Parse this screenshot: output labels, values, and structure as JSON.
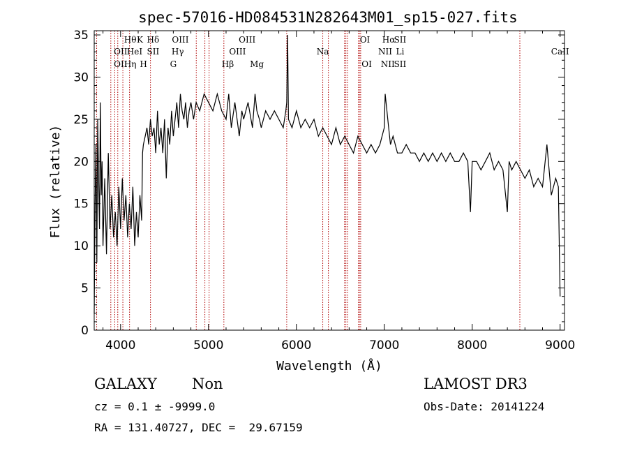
{
  "chart_data": {
    "type": "line",
    "title": "spec-57016-HD084531N282643M01_sp15-027.fits",
    "xlabel": "Wavelength (Å)",
    "ylabel": "Flux (relative)",
    "xlim": [
      3700,
      9050
    ],
    "ylim": [
      0,
      35.5
    ],
    "xticks": [
      4000,
      5000,
      6000,
      7000,
      8000,
      9000
    ],
    "yticks": [
      0,
      5,
      10,
      15,
      20,
      25,
      30,
      35
    ],
    "grid": false,
    "series": [
      {
        "name": "spectrum",
        "color": "#000000",
        "x": [
          3700,
          3710,
          3720,
          3730,
          3740,
          3750,
          3760,
          3770,
          3780,
          3790,
          3800,
          3820,
          3840,
          3860,
          3880,
          3900,
          3920,
          3940,
          3960,
          3980,
          4000,
          4020,
          4040,
          4060,
          4080,
          4100,
          4120,
          4140,
          4160,
          4180,
          4200,
          4220,
          4240,
          4250,
          4260,
          4280,
          4300,
          4320,
          4340,
          4360,
          4380,
          4400,
          4420,
          4440,
          4460,
          4480,
          4500,
          4520,
          4540,
          4560,
          4580,
          4600,
          4620,
          4640,
          4660,
          4680,
          4700,
          4720,
          4740,
          4760,
          4780,
          4800,
          4830,
          4860,
          4900,
          4950,
          5000,
          5050,
          5100,
          5150,
          5200,
          5230,
          5260,
          5300,
          5350,
          5380,
          5400,
          5450,
          5500,
          5530,
          5550,
          5580,
          5600,
          5650,
          5700,
          5750,
          5800,
          5850,
          5880,
          5890,
          5900,
          5910,
          5950,
          6000,
          6050,
          6100,
          6150,
          6200,
          6250,
          6300,
          6350,
          6400,
          6450,
          6500,
          6550,
          6600,
          6650,
          6700,
          6750,
          6800,
          6850,
          6900,
          6950,
          7000,
          7010,
          7030,
          7050,
          7070,
          7100,
          7150,
          7200,
          7250,
          7300,
          7350,
          7400,
          7450,
          7500,
          7550,
          7600,
          7650,
          7700,
          7750,
          7800,
          7850,
          7900,
          7950,
          7980,
          8000,
          8050,
          8100,
          8150,
          8200,
          8250,
          8300,
          8350,
          8400,
          8420,
          8450,
          8500,
          8550,
          8600,
          8650,
          8700,
          8750,
          8800,
          8850,
          8900,
          8950,
          8980,
          9000
        ],
        "y": [
          2,
          15,
          22,
          8,
          25,
          18,
          12,
          27,
          16,
          20,
          10,
          18,
          9,
          21,
          12,
          16,
          11,
          14,
          10,
          17,
          12,
          18,
          13,
          16,
          11,
          15,
          12,
          17,
          10,
          14,
          11,
          16,
          13,
          21,
          22,
          23,
          24,
          22,
          25,
          23,
          24,
          21,
          26,
          22,
          24,
          21,
          25,
          18,
          24,
          22,
          26,
          23,
          25,
          27,
          24,
          28,
          26,
          25,
          27,
          24,
          26,
          27,
          25,
          27,
          26,
          28,
          27,
          26,
          28,
          26,
          25,
          28,
          24,
          27,
          23,
          26,
          25,
          27,
          24,
          28,
          26,
          25,
          24,
          26,
          25,
          26,
          25,
          24,
          26,
          27,
          35,
          25,
          24,
          26,
          24,
          25,
          24,
          25,
          23,
          24,
          23,
          22,
          24,
          22,
          23,
          22,
          21,
          23,
          22,
          21,
          22,
          21,
          22,
          24,
          28,
          26,
          24,
          22,
          23,
          21,
          21,
          22,
          21,
          21,
          20,
          21,
          20,
          21,
          20,
          21,
          20,
          21,
          20,
          20,
          21,
          20,
          14,
          20,
          20,
          19,
          20,
          21,
          19,
          20,
          19,
          14,
          20,
          19,
          20,
          19,
          18,
          19,
          17,
          18,
          17,
          22,
          16,
          18,
          17,
          4
        ]
      }
    ],
    "lines": {
      "color": "#b00000",
      "wavelengths": [
        3728,
        3889,
        3934,
        3968,
        4026,
        4102,
        4340,
        4861,
        4959,
        5007,
        5175,
        5890,
        6300,
        6364,
        6548,
        6563,
        6583,
        6707,
        6717,
        6731,
        8542
      ],
      "labels": [
        {
          "text": "Hθ",
          "x": 4110,
          "row": 1
        },
        {
          "text": "K",
          "x": 4220,
          "row": 1
        },
        {
          "text": "Hδ",
          "x": 4370,
          "row": 1
        },
        {
          "text": "OIII",
          "x": 4680,
          "row": 1
        },
        {
          "text": "OIII",
          "x": 5440,
          "row": 1
        },
        {
          "text": "OI",
          "x": 6780,
          "row": 1
        },
        {
          "text": "Hα",
          "x": 7050,
          "row": 1
        },
        {
          "text": "SII",
          "x": 7180,
          "row": 1
        },
        {
          "text": "OII",
          "x": 4000,
          "row": 2
        },
        {
          "text": "HeI",
          "x": 4160,
          "row": 2
        },
        {
          "text": "SII",
          "x": 4370,
          "row": 2
        },
        {
          "text": "Hγ",
          "x": 4650,
          "row": 2
        },
        {
          "text": "OIII",
          "x": 5330,
          "row": 2
        },
        {
          "text": "Na",
          "x": 6300,
          "row": 2
        },
        {
          "text": "NII",
          "x": 7010,
          "row": 2
        },
        {
          "text": "Li",
          "x": 7180,
          "row": 2
        },
        {
          "text": "CaII",
          "x": 9000,
          "row": 2
        },
        {
          "text": "OII",
          "x": 4000,
          "row": 3
        },
        {
          "text": "Hη",
          "x": 4110,
          "row": 3
        },
        {
          "text": "H",
          "x": 4260,
          "row": 3
        },
        {
          "text": "G",
          "x": 4600,
          "row": 3
        },
        {
          "text": "Hβ",
          "x": 5220,
          "row": 3
        },
        {
          "text": "Mg",
          "x": 5550,
          "row": 3
        },
        {
          "text": "OI",
          "x": 6800,
          "row": 3
        },
        {
          "text": "NII",
          "x": 7040,
          "row": 3
        },
        {
          "text": "SII",
          "x": 7180,
          "row": 3
        }
      ]
    }
  },
  "info": {
    "class_label": "GALAXY",
    "subclass_label": "Non",
    "survey_label": "LAMOST DR3",
    "cz_text": "cz = 0.1 ± -9999.0",
    "obsdate_text": "Obs-Date: 20141224",
    "radec_text": "RA = 131.40727, DEC =  29.67159"
  }
}
